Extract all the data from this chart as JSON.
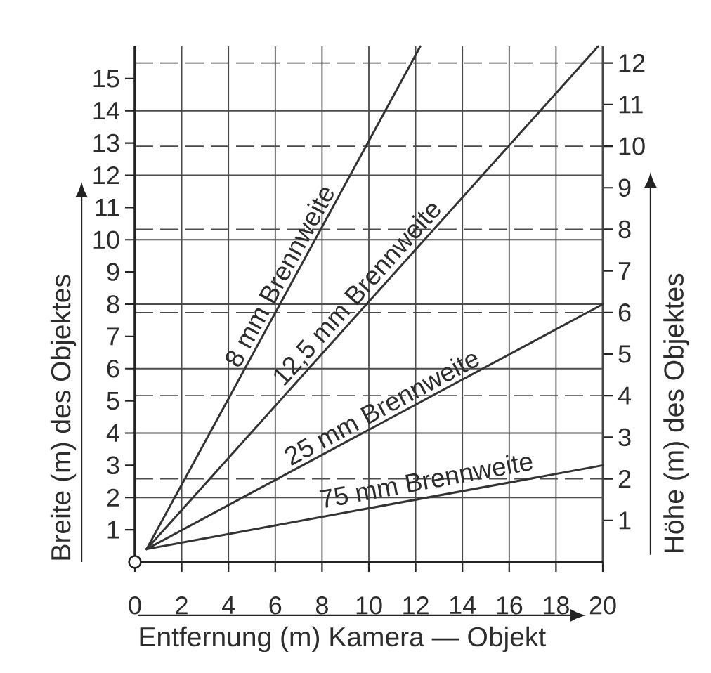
{
  "chart_data": {
    "type": "line",
    "xlabel": "Entfernung (m) Kamera — Objekt",
    "ylabel": "Breite (m) des Objektes",
    "y2label": "Höhe (m) des Objektes",
    "xlim": [
      0,
      20
    ],
    "xticks": [
      0,
      2,
      4,
      6,
      8,
      10,
      12,
      14,
      16,
      18,
      20
    ],
    "ylim": [
      0,
      16
    ],
    "yticks": [
      1,
      2,
      3,
      4,
      5,
      6,
      7,
      8,
      9,
      10,
      11,
      12,
      13,
      14,
      15
    ],
    "y2lim": [
      0,
      12.4
    ],
    "y2ticks": [
      1,
      2,
      3,
      4,
      5,
      6,
      7,
      8,
      9,
      10,
      11,
      12
    ],
    "series": [
      {
        "name": "8 mm Brennweite",
        "color": "#333333",
        "x": [
          0.5,
          12.2
        ],
        "values": [
          0.4,
          16
        ]
      },
      {
        "name": "12,5 mm Brennweite",
        "color": "#333333",
        "x": [
          0.5,
          19.8
        ],
        "values": [
          0.4,
          16
        ]
      },
      {
        "name": "25 mm Brennweite",
        "color": "#333333",
        "x": [
          0.5,
          20
        ],
        "values": [
          0.4,
          8.0
        ]
      },
      {
        "name": "75 mm Brennweite",
        "color": "#333333",
        "x": [
          0.5,
          20
        ],
        "values": [
          0.4,
          3.0
        ]
      }
    ],
    "grid": true,
    "marker": "none",
    "line_style": "solid"
  }
}
